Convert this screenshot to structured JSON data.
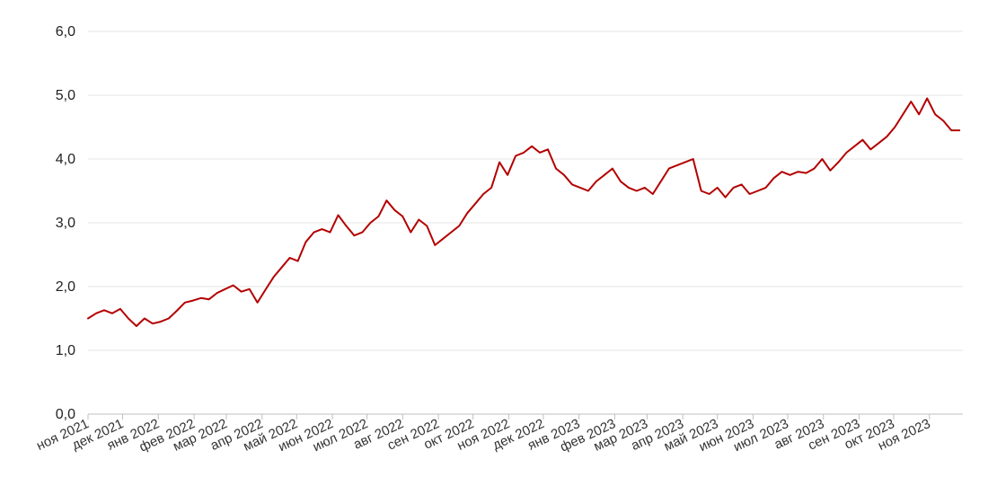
{
  "chart_data": {
    "type": "line",
    "title": "",
    "xlabel": "",
    "ylabel": "",
    "ylim": [
      0,
      6
    ],
    "yticks": [
      "0,0",
      "1,0",
      "2,0",
      "3,0",
      "4,0",
      "5,0",
      "6,0"
    ],
    "grid": true,
    "legend": "none",
    "categories": [
      "ноя 2021",
      "дек 2021",
      "янв 2022",
      "фев 2022",
      "мар 2022",
      "апр 2022",
      "май 2022",
      "июн 2022",
      "июл 2022",
      "авг 2022",
      "сен 2022",
      "окт 2022",
      "ноя 2022",
      "дек 2022",
      "янв 2023",
      "фев 2023",
      "мар 2023",
      "апр 2023",
      "май 2023",
      "июн 2023",
      "июл 2023",
      "авг 2023",
      "сен 2023",
      "окт 2023",
      "ноя 2023"
    ],
    "series": [
      {
        "color": "#b30000",
        "x": [
          "2021-11-01",
          "2021-11-08",
          "2021-11-15",
          "2021-11-22",
          "2021-11-29",
          "2021-12-06",
          "2021-12-13",
          "2021-12-20",
          "2021-12-27",
          "2022-01-03",
          "2022-01-10",
          "2022-01-17",
          "2022-01-24",
          "2022-01-31",
          "2022-02-07",
          "2022-02-14",
          "2022-02-21",
          "2022-02-28",
          "2022-03-07",
          "2022-03-14",
          "2022-03-21",
          "2022-03-28",
          "2022-04-04",
          "2022-04-11",
          "2022-04-18",
          "2022-04-25",
          "2022-05-02",
          "2022-05-09",
          "2022-05-16",
          "2022-05-23",
          "2022-05-30",
          "2022-06-06",
          "2022-06-13",
          "2022-06-20",
          "2022-06-27",
          "2022-07-04",
          "2022-07-11",
          "2022-07-18",
          "2022-07-25",
          "2022-08-01",
          "2022-08-08",
          "2022-08-15",
          "2022-08-22",
          "2022-08-29",
          "2022-09-05",
          "2022-09-12",
          "2022-09-19",
          "2022-09-26",
          "2022-10-03",
          "2022-10-10",
          "2022-10-17",
          "2022-10-24",
          "2022-10-31",
          "2022-11-07",
          "2022-11-14",
          "2022-11-21",
          "2022-11-28",
          "2022-12-05",
          "2022-12-12",
          "2022-12-19",
          "2022-12-26",
          "2023-01-02",
          "2023-01-09",
          "2023-01-16",
          "2023-01-23",
          "2023-01-30",
          "2023-02-06",
          "2023-02-13",
          "2023-02-20",
          "2023-02-27",
          "2023-03-06",
          "2023-03-13",
          "2023-03-20",
          "2023-03-27",
          "2023-04-03",
          "2023-04-10",
          "2023-04-17",
          "2023-04-24",
          "2023-05-01",
          "2023-05-08",
          "2023-05-15",
          "2023-05-22",
          "2023-05-29",
          "2023-06-05",
          "2023-06-12",
          "2023-06-19",
          "2023-06-26",
          "2023-07-03",
          "2023-07-10",
          "2023-07-17",
          "2023-07-24",
          "2023-07-31",
          "2023-08-07",
          "2023-08-14",
          "2023-08-21",
          "2023-08-28",
          "2023-09-04",
          "2023-09-11",
          "2023-09-18",
          "2023-09-25",
          "2023-10-02",
          "2023-10-09",
          "2023-10-16",
          "2023-10-23",
          "2023-10-30",
          "2023-11-06",
          "2023-11-13",
          "2023-11-20",
          "2023-11-27"
        ],
        "values": [
          1.5,
          1.58,
          1.63,
          1.58,
          1.65,
          1.5,
          1.38,
          1.5,
          1.42,
          1.45,
          1.5,
          1.62,
          1.75,
          1.78,
          1.82,
          1.8,
          1.9,
          1.96,
          2.02,
          1.92,
          1.96,
          1.75,
          1.95,
          2.15,
          2.3,
          2.45,
          2.4,
          2.7,
          2.85,
          2.9,
          2.85,
          3.12,
          2.95,
          2.8,
          2.85,
          3.0,
          3.1,
          3.35,
          3.2,
          3.1,
          2.85,
          3.05,
          2.95,
          2.65,
          2.75,
          2.85,
          2.95,
          3.15,
          3.3,
          3.45,
          3.55,
          3.95,
          3.75,
          4.05,
          4.1,
          4.2,
          4.1,
          4.15,
          3.85,
          3.75,
          3.6,
          3.55,
          3.5,
          3.65,
          3.75,
          3.85,
          3.65,
          3.55,
          3.5,
          3.55,
          3.45,
          3.65,
          3.85,
          3.9,
          3.95,
          4.0,
          3.5,
          3.45,
          3.55,
          3.4,
          3.55,
          3.6,
          3.45,
          3.5,
          3.55,
          3.7,
          3.8,
          3.75,
          3.8,
          3.78,
          3.85,
          4.0,
          3.82,
          3.95,
          4.1,
          4.2,
          4.3,
          4.15,
          4.25,
          4.35,
          4.5,
          4.7,
          4.9,
          4.7,
          4.95,
          4.7,
          4.6,
          4.45,
          4.45
        ]
      }
    ]
  }
}
